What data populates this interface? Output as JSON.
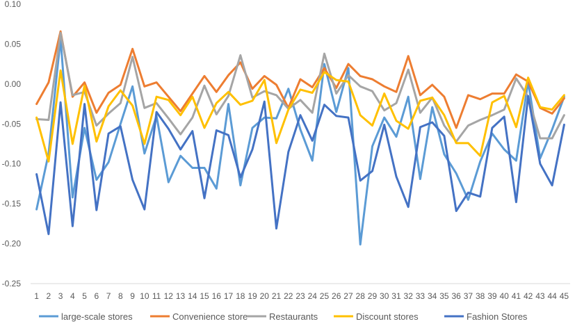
{
  "chart_data": {
    "type": "line",
    "title": "",
    "xlabel": "",
    "ylabel": "",
    "x": [
      1,
      2,
      3,
      4,
      5,
      6,
      7,
      8,
      9,
      10,
      11,
      12,
      13,
      14,
      15,
      16,
      17,
      18,
      19,
      20,
      21,
      22,
      23,
      24,
      25,
      26,
      27,
      28,
      29,
      30,
      31,
      32,
      33,
      34,
      35,
      36,
      37,
      38,
      39,
      40,
      41,
      42,
      43,
      44,
      45
    ],
    "ylim": [
      -0.25,
      0.1
    ],
    "yticks": [
      0.1,
      0.05,
      0.0,
      -0.05,
      -0.1,
      -0.15,
      -0.2,
      -0.25
    ],
    "ytick_labels": [
      "0.10",
      "0.05",
      "0.00",
      "-0.05",
      "-0.10",
      "-0.15",
      "-0.20",
      "-0.25"
    ],
    "grid": false,
    "legend_position": "bottom",
    "series": [
      {
        "name": "large-scale stores",
        "color": "#5B9BD5",
        "values": [
          -0.157,
          -0.087,
          0.057,
          -0.142,
          -0.055,
          -0.12,
          -0.098,
          -0.05,
          -0.003,
          -0.087,
          -0.04,
          -0.123,
          -0.09,
          -0.105,
          -0.105,
          -0.131,
          -0.025,
          -0.127,
          -0.055,
          -0.042,
          -0.043,
          -0.006,
          -0.057,
          -0.096,
          0.025,
          -0.035,
          0.02,
          -0.201,
          -0.078,
          -0.042,
          -0.066,
          -0.016,
          -0.119,
          -0.029,
          -0.088,
          -0.112,
          -0.145,
          -0.097,
          -0.062,
          -0.082,
          -0.096,
          0.003,
          -0.093,
          -0.057,
          -0.016
        ]
      },
      {
        "name": "Convenience store",
        "color": "#ED7D31",
        "values": [
          -0.025,
          0.002,
          0.066,
          -0.016,
          0.002,
          -0.036,
          -0.011,
          -0.001,
          0.044,
          -0.003,
          0.002,
          -0.016,
          -0.034,
          -0.012,
          0.01,
          -0.01,
          0.011,
          0.027,
          -0.006,
          0.01,
          -0.001,
          -0.03,
          0.006,
          -0.004,
          0.02,
          -0.005,
          0.025,
          0.01,
          0.006,
          -0.003,
          -0.01,
          0.035,
          -0.014,
          -0.001,
          -0.016,
          -0.055,
          -0.014,
          -0.019,
          -0.012,
          -0.012,
          0.012,
          0.003,
          -0.03,
          -0.037,
          -0.018
        ]
      },
      {
        "name": "Restaurants",
        "color": "#A5A5A5",
        "values": [
          -0.044,
          -0.045,
          0.064,
          -0.014,
          -0.01,
          -0.052,
          -0.037,
          -0.024,
          0.034,
          -0.03,
          -0.024,
          -0.043,
          -0.063,
          -0.042,
          -0.002,
          -0.038,
          -0.015,
          0.036,
          -0.017,
          -0.009,
          -0.014,
          -0.031,
          -0.02,
          -0.036,
          0.038,
          -0.012,
          0.011,
          -0.003,
          -0.009,
          -0.033,
          -0.024,
          0.018,
          -0.036,
          -0.017,
          -0.052,
          -0.072,
          -0.052,
          -0.045,
          -0.039,
          -0.032,
          0.007,
          -0.016,
          -0.068,
          -0.068,
          -0.039
        ]
      },
      {
        "name": "Discount stores",
        "color": "#FFC000",
        "values": [
          -0.042,
          -0.097,
          0.017,
          -0.075,
          -0.002,
          -0.072,
          -0.028,
          -0.008,
          -0.027,
          -0.075,
          -0.016,
          -0.02,
          -0.039,
          -0.016,
          -0.055,
          -0.024,
          -0.01,
          -0.026,
          -0.021,
          0.005,
          -0.074,
          -0.032,
          -0.007,
          -0.011,
          0.015,
          0.005,
          0.003,
          -0.039,
          -0.052,
          -0.012,
          -0.046,
          -0.056,
          -0.021,
          -0.017,
          -0.039,
          -0.074,
          -0.074,
          -0.09,
          -0.023,
          -0.015,
          -0.054,
          0.008,
          -0.029,
          -0.032,
          -0.014
        ]
      },
      {
        "name": "Fashion Stores",
        "color": "#4472C4",
        "values": [
          -0.113,
          -0.188,
          -0.023,
          -0.178,
          -0.025,
          -0.158,
          -0.062,
          -0.053,
          -0.12,
          -0.157,
          -0.035,
          -0.056,
          -0.082,
          -0.059,
          -0.143,
          -0.058,
          -0.064,
          -0.117,
          -0.082,
          -0.022,
          -0.181,
          -0.085,
          -0.039,
          -0.071,
          -0.026,
          -0.04,
          -0.042,
          -0.121,
          -0.109,
          -0.051,
          -0.116,
          -0.154,
          -0.054,
          -0.048,
          -0.065,
          -0.159,
          -0.136,
          -0.141,
          -0.055,
          -0.041,
          -0.148,
          -0.015,
          -0.1,
          -0.127,
          -0.051
        ]
      }
    ]
  }
}
